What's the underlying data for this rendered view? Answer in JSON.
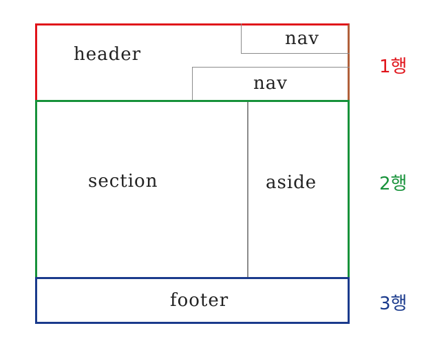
{
  "diagram": {
    "regions": {
      "header": "header",
      "nav_top": "nav",
      "nav_bottom": "nav",
      "section": "section",
      "aside": "aside",
      "footer": "footer"
    },
    "rows": [
      {
        "label": "1행",
        "color": "#e0131a"
      },
      {
        "label": "2행",
        "color": "#17923a"
      },
      {
        "label": "3행",
        "color": "#1a3a8c"
      }
    ],
    "colors": {
      "row1_border": "#e0131a",
      "row2_border": "#17923a",
      "row3_border": "#1a3a8c",
      "inner_border": "#8a8a8a"
    }
  }
}
